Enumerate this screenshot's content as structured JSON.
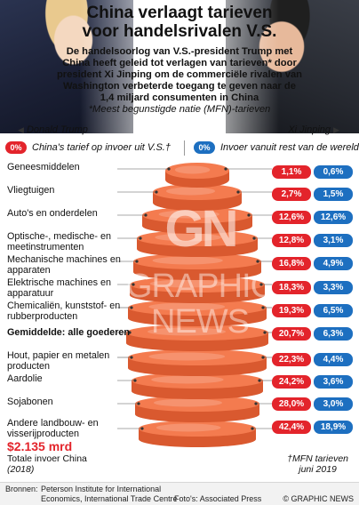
{
  "title": [
    "China verlaagt tarieven",
    "voor handelsrivalen V.S."
  ],
  "intro": {
    "text": "De handelsoorlog van V.S.-president Trump met China heeft geleid tot verlagen van tarieven* door president Xi Jinping om de commerciële rivalen van Washington verbeterde toegang te geven naar de 1,4 miljard consumenten in China",
    "note": "*Meest begunstigde natie (MFN)-tarieven"
  },
  "captions": {
    "trump": "Donald Trump",
    "xi": "Xi Jinping"
  },
  "legend": {
    "china_pill": "0%",
    "china_label": "China's tarief op invoer uit V.S.†",
    "world_pill": "0%",
    "world_label": "Invoer vanuit rest van de wereld"
  },
  "colors": {
    "china": "#e3242b",
    "world": "#1d6fc0",
    "stack": "#f47b4f"
  },
  "rows": [
    {
      "label": "Geneesmiddelen",
      "china": "1,1%",
      "world": "0,6%"
    },
    {
      "label": "Vliegtuigen",
      "china": "2,7%",
      "world": "1,5%"
    },
    {
      "label": "Auto's en onderdelen",
      "china": "12,6%",
      "world": "12,6%"
    },
    {
      "label": "Optische-, medische- en meetinstrumenten",
      "china": "12,8%",
      "world": "3,1%"
    },
    {
      "label": "Mechanische machines en apparaten",
      "china": "16,8%",
      "world": "4,9%"
    },
    {
      "label": "Elektrische machines en apparatuur",
      "china": "18,3%",
      "world": "3,3%"
    },
    {
      "label": "Chemicaliën, kunststof- en rubberproducten",
      "china": "19,3%",
      "world": "6,5%"
    },
    {
      "label": "Gemiddelde: alle goederen",
      "china": "20,7%",
      "world": "6,3%",
      "bold": true
    },
    {
      "label": "Hout, papier en metalen producten",
      "china": "22,3%",
      "world": "4,4%"
    },
    {
      "label": "Aardolie",
      "china": "24,2%",
      "world": "3,6%"
    },
    {
      "label": "Sojabonen",
      "china": "28,0%",
      "world": "3,0%"
    },
    {
      "label": "Andere landbouw- en visserijproducten",
      "china": "42,4%",
      "world": "18,9%"
    }
  ],
  "total": {
    "value": "$2.135 mrd",
    "label": "Totale invoer China",
    "year": "(2018)"
  },
  "mfn_note": [
    "†MFN tarieven",
    "juni 2019"
  ],
  "watermark": {
    "logo": "GN",
    "text": "GRAPHIC NEWS"
  },
  "footer": {
    "sources_label": "Bronnen:",
    "sources": "Peterson Institute for International Economics, International Trade Centre",
    "photos": "Foto's: Associated Press",
    "credit": "© GRAPHIC NEWS"
  }
}
